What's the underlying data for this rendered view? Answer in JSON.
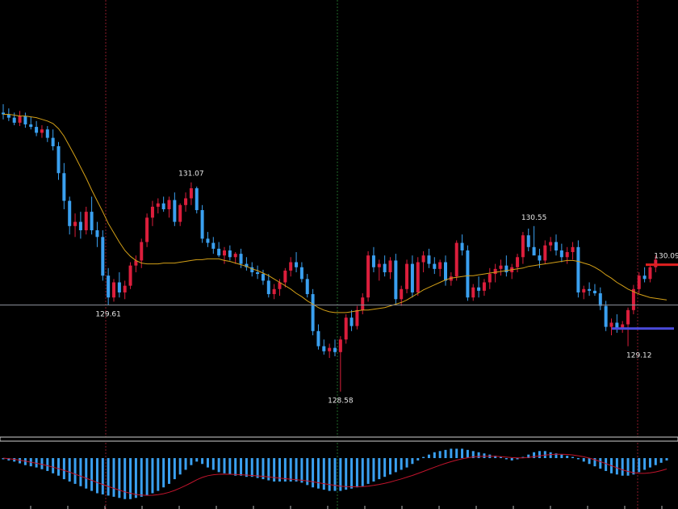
{
  "chart_data": {
    "type": "candlestick",
    "title": "",
    "xlabel": "",
    "ylabel": "",
    "ylim": [
      128.0,
      133.0
    ],
    "colors": {
      "background": "#000000",
      "up": "#dc1e3c",
      "down": "#3aa0f0",
      "moving_average": "#d4a017",
      "price_line": "#8a8f99",
      "resistance": "#e02020",
      "support": "#4a4ad8",
      "histogram": "#3aa0f0",
      "signal": "#c0142c"
    },
    "price_line": 129.61,
    "resistance_level": 130.09,
    "support_level": 129.33,
    "annotations": [
      {
        "text": "131.07",
        "index": 34,
        "price": 131.07,
        "pos": "above"
      },
      {
        "text": "129.61",
        "index": 19,
        "price": 129.61,
        "pos": "below"
      },
      {
        "text": "128.58",
        "index": 61,
        "price": 128.58,
        "pos": "below"
      },
      {
        "text": "130.55",
        "index": 96,
        "price": 130.55,
        "pos": "above"
      },
      {
        "text": "129.12",
        "index": 115,
        "price": 129.12,
        "pos": "below"
      },
      {
        "text": "130.09",
        "index": 120,
        "price": 130.09,
        "pos": "above"
      }
    ],
    "candles": [
      [
        131.9,
        132.0,
        131.82,
        131.88
      ],
      [
        131.88,
        131.95,
        131.8,
        131.84
      ],
      [
        131.84,
        131.9,
        131.75,
        131.78
      ],
      [
        131.78,
        131.92,
        131.74,
        131.86
      ],
      [
        131.86,
        131.9,
        131.72,
        131.76
      ],
      [
        131.76,
        131.85,
        131.7,
        131.73
      ],
      [
        131.73,
        131.8,
        131.62,
        131.66
      ],
      [
        131.66,
        131.75,
        131.6,
        131.7
      ],
      [
        131.7,
        131.74,
        131.55,
        131.6
      ],
      [
        131.6,
        131.7,
        131.45,
        131.5
      ],
      [
        131.5,
        131.55,
        131.1,
        131.18
      ],
      [
        131.18,
        131.3,
        130.75,
        130.85
      ],
      [
        130.85,
        130.9,
        130.45,
        130.55
      ],
      [
        130.55,
        130.7,
        130.42,
        130.6
      ],
      [
        130.6,
        130.72,
        130.4,
        130.5
      ],
      [
        130.5,
        130.78,
        130.45,
        130.72
      ],
      [
        130.72,
        130.9,
        130.45,
        130.5
      ],
      [
        130.5,
        130.6,
        130.3,
        130.42
      ],
      [
        130.42,
        130.5,
        129.9,
        129.96
      ],
      [
        129.96,
        130.05,
        129.61,
        129.7
      ],
      [
        129.7,
        129.92,
        129.65,
        129.88
      ],
      [
        129.88,
        130.0,
        129.7,
        129.76
      ],
      [
        129.76,
        129.9,
        129.68,
        129.84
      ],
      [
        129.84,
        130.12,
        129.8,
        130.08
      ],
      [
        130.08,
        130.2,
        130.0,
        130.14
      ],
      [
        130.14,
        130.4,
        130.05,
        130.36
      ],
      [
        130.36,
        130.7,
        130.3,
        130.65
      ],
      [
        130.65,
        130.85,
        130.55,
        130.78
      ],
      [
        130.78,
        130.88,
        130.7,
        130.82
      ],
      [
        130.82,
        130.9,
        130.72,
        130.75
      ],
      [
        130.75,
        130.9,
        130.65,
        130.86
      ],
      [
        130.86,
        130.95,
        130.55,
        130.6
      ],
      [
        130.6,
        130.82,
        130.55,
        130.8
      ],
      [
        130.8,
        130.95,
        130.72,
        130.88
      ],
      [
        130.88,
        131.07,
        130.8,
        131.0
      ],
      [
        131.0,
        131.02,
        130.7,
        130.74
      ],
      [
        130.74,
        130.8,
        130.35,
        130.4
      ],
      [
        130.4,
        130.48,
        130.3,
        130.35
      ],
      [
        130.35,
        130.42,
        130.22,
        130.28
      ],
      [
        130.28,
        130.36,
        130.18,
        130.2
      ],
      [
        130.2,
        130.3,
        130.1,
        130.26
      ],
      [
        130.26,
        130.32,
        130.14,
        130.18
      ],
      [
        130.18,
        130.24,
        130.1,
        130.22
      ],
      [
        130.22,
        130.28,
        130.05,
        130.1
      ],
      [
        130.1,
        130.18,
        130.02,
        130.06
      ],
      [
        130.06,
        130.12,
        129.95,
        130.0
      ],
      [
        130.0,
        130.08,
        129.92,
        129.98
      ],
      [
        129.98,
        130.03,
        129.85,
        129.9
      ],
      [
        129.9,
        129.98,
        129.7,
        129.74
      ],
      [
        129.74,
        129.86,
        129.68,
        129.8
      ],
      [
        129.8,
        129.92,
        129.72,
        129.88
      ],
      [
        129.88,
        130.05,
        129.82,
        130.02
      ],
      [
        130.02,
        130.18,
        129.95,
        130.12
      ],
      [
        130.12,
        130.24,
        130.0,
        130.06
      ],
      [
        130.06,
        130.12,
        129.88,
        129.92
      ],
      [
        129.92,
        129.98,
        129.7,
        129.74
      ],
      [
        129.74,
        129.8,
        129.25,
        129.3
      ],
      [
        129.3,
        129.38,
        129.08,
        129.12
      ],
      [
        129.12,
        129.2,
        129.02,
        129.06
      ],
      [
        129.06,
        129.15,
        128.98,
        129.1
      ],
      [
        129.1,
        129.2,
        129.0,
        129.05
      ],
      [
        129.05,
        129.24,
        128.58,
        129.2
      ],
      [
        129.2,
        129.5,
        129.15,
        129.46
      ],
      [
        129.46,
        129.55,
        129.3,
        129.36
      ],
      [
        129.36,
        129.6,
        129.32,
        129.55
      ],
      [
        129.55,
        129.75,
        129.5,
        129.7
      ],
      [
        129.7,
        130.25,
        129.65,
        130.2
      ],
      [
        130.2,
        130.3,
        130.0,
        130.06
      ],
      [
        130.06,
        130.15,
        129.9,
        130.1
      ],
      [
        130.1,
        130.2,
        129.95,
        130.0
      ],
      [
        130.0,
        130.18,
        129.92,
        130.14
      ],
      [
        130.14,
        130.22,
        129.62,
        129.68
      ],
      [
        129.68,
        129.84,
        129.6,
        129.8
      ],
      [
        129.8,
        130.15,
        129.75,
        130.1
      ],
      [
        130.1,
        130.2,
        129.7,
        129.76
      ],
      [
        129.76,
        130.18,
        129.72,
        130.12
      ],
      [
        130.12,
        130.25,
        130.0,
        130.2
      ],
      [
        130.2,
        130.28,
        130.05,
        130.1
      ],
      [
        130.1,
        130.18,
        129.98,
        130.04
      ],
      [
        130.04,
        130.15,
        129.95,
        130.12
      ],
      [
        130.12,
        130.2,
        129.84,
        129.9
      ],
      [
        129.9,
        130.0,
        129.84,
        129.95
      ],
      [
        129.95,
        130.38,
        129.9,
        130.35
      ],
      [
        130.35,
        130.45,
        130.2,
        130.26
      ],
      [
        130.26,
        130.32,
        129.66,
        129.7
      ],
      [
        129.7,
        129.86,
        129.66,
        129.82
      ],
      [
        129.82,
        129.95,
        129.7,
        129.78
      ],
      [
        129.78,
        129.92,
        129.72,
        129.88
      ],
      [
        129.88,
        130.05,
        129.8,
        129.98
      ],
      [
        129.98,
        130.1,
        129.88,
        130.04
      ],
      [
        130.04,
        130.15,
        129.96,
        130.08
      ],
      [
        130.08,
        130.2,
        129.95,
        130.0
      ],
      [
        130.0,
        130.1,
        129.92,
        130.06
      ],
      [
        130.06,
        130.22,
        130.0,
        130.18
      ],
      [
        130.18,
        130.48,
        130.1,
        130.44
      ],
      [
        130.44,
        130.52,
        130.25,
        130.3
      ],
      [
        130.3,
        130.55,
        130.22,
        130.2
      ],
      [
        130.2,
        130.28,
        130.05,
        130.14
      ],
      [
        130.14,
        130.38,
        130.1,
        130.32
      ],
      [
        130.32,
        130.42,
        130.25,
        130.36
      ],
      [
        130.36,
        130.45,
        130.2,
        130.26
      ],
      [
        130.26,
        130.34,
        130.12,
        130.18
      ],
      [
        130.18,
        130.3,
        130.1,
        130.24
      ],
      [
        130.24,
        130.36,
        130.15,
        130.3
      ],
      [
        130.3,
        130.38,
        129.7,
        129.76
      ],
      [
        129.76,
        129.84,
        129.68,
        129.8
      ],
      [
        129.8,
        129.88,
        129.72,
        129.78
      ],
      [
        129.78,
        129.86,
        129.72,
        129.75
      ],
      [
        129.75,
        129.82,
        129.55,
        129.6
      ],
      [
        129.6,
        129.66,
        129.3,
        129.35
      ],
      [
        129.35,
        129.45,
        129.25,
        129.4
      ],
      [
        129.4,
        129.5,
        129.28,
        129.32
      ],
      [
        129.32,
        129.42,
        129.28,
        129.38
      ],
      [
        129.38,
        129.58,
        129.12,
        129.55
      ],
      [
        129.55,
        129.85,
        129.5,
        129.8
      ],
      [
        129.8,
        130.0,
        129.75,
        129.96
      ],
      [
        129.96,
        130.06,
        129.88,
        129.92
      ],
      [
        129.92,
        130.09,
        129.88,
        130.06
      ],
      [
        130.06,
        130.2,
        130.0,
        130.15
      ]
    ],
    "ma": [
      131.88,
      131.88,
      131.87,
      131.86,
      131.86,
      131.85,
      131.84,
      131.82,
      131.8,
      131.77,
      131.71,
      131.62,
      131.5,
      131.38,
      131.25,
      131.12,
      130.98,
      130.85,
      130.72,
      130.58,
      130.47,
      130.36,
      130.26,
      130.19,
      130.14,
      130.11,
      130.1,
      130.1,
      130.1,
      130.11,
      130.11,
      130.11,
      130.12,
      130.13,
      130.14,
      130.15,
      130.15,
      130.16,
      130.16,
      130.16,
      130.14,
      130.13,
      130.11,
      130.09,
      130.07,
      130.04,
      130.02,
      129.99,
      129.96,
      129.92,
      129.88,
      129.84,
      129.8,
      129.75,
      129.71,
      129.66,
      129.62,
      129.58,
      129.55,
      129.53,
      129.52,
      129.52,
      129.52,
      129.53,
      129.54,
      129.55,
      129.55,
      129.56,
      129.57,
      129.58,
      129.6,
      129.62,
      129.64,
      129.67,
      129.71,
      129.75,
      129.79,
      129.82,
      129.85,
      129.88,
      129.91,
      129.93,
      129.94,
      129.95,
      129.96,
      129.96,
      129.97,
      129.98,
      129.99,
      130.0,
      130.01,
      130.02,
      130.03,
      130.04,
      130.05,
      130.07,
      130.08,
      130.09,
      130.1,
      130.11,
      130.12,
      130.13,
      130.14,
      130.14,
      130.13,
      130.11,
      130.09,
      130.06,
      130.02,
      129.97,
      129.93,
      129.88,
      129.84,
      129.8,
      129.77,
      129.74,
      129.72,
      129.7,
      129.69,
      129.68,
      129.67
    ],
    "histogram": [
      -0.1,
      -0.2,
      -0.3,
      -0.45,
      -0.6,
      -0.7,
      -0.8,
      -0.95,
      -1.1,
      -1.3,
      -1.5,
      -1.8,
      -2.0,
      -2.2,
      -2.4,
      -2.6,
      -2.8,
      -3.0,
      -3.1,
      -3.2,
      -3.3,
      -3.4,
      -3.5,
      -3.5,
      -3.4,
      -3.3,
      -3.2,
      -3.0,
      -2.8,
      -2.5,
      -2.2,
      -1.8,
      -1.4,
      -1.0,
      -0.6,
      -0.3,
      -0.5,
      -0.8,
      -1.0,
      -1.2,
      -1.3,
      -1.4,
      -1.5,
      -1.5,
      -1.6,
      -1.6,
      -1.7,
      -1.8,
      -1.9,
      -2.0,
      -2.0,
      -2.0,
      -2.0,
      -2.0,
      -2.1,
      -2.3,
      -2.5,
      -2.6,
      -2.7,
      -2.8,
      -2.8,
      -2.8,
      -2.7,
      -2.6,
      -2.5,
      -2.4,
      -2.2,
      -2.0,
      -1.8,
      -1.6,
      -1.4,
      -1.2,
      -1.0,
      -0.8,
      -0.5,
      -0.2,
      0.1,
      0.3,
      0.5,
      0.6,
      0.7,
      0.8,
      0.8,
      0.8,
      0.7,
      0.6,
      0.5,
      0.4,
      0.3,
      0.2,
      0.1,
      -0.1,
      -0.2,
      -0.1,
      0.1,
      0.3,
      0.5,
      0.6,
      0.6,
      0.5,
      0.4,
      0.3,
      0.2,
      0.1,
      -0.1,
      -0.3,
      -0.5,
      -0.7,
      -0.9,
      -1.1,
      -1.3,
      -1.4,
      -1.5,
      -1.5,
      -1.4,
      -1.2,
      -1.0,
      -0.8,
      -0.6,
      -0.4,
      -0.2
    ],
    "signal": [
      0.0,
      -0.05,
      -0.1,
      -0.18,
      -0.26,
      -0.35,
      -0.44,
      -0.54,
      -0.65,
      -0.77,
      -0.9,
      -1.05,
      -1.2,
      -1.37,
      -1.54,
      -1.72,
      -1.9,
      -2.08,
      -2.25,
      -2.42,
      -2.58,
      -2.73,
      -2.88,
      -3.0,
      -3.1,
      -3.15,
      -3.18,
      -3.17,
      -3.12,
      -3.04,
      -2.92,
      -2.76,
      -2.56,
      -2.34,
      -2.1,
      -1.85,
      -1.65,
      -1.5,
      -1.42,
      -1.38,
      -1.37,
      -1.38,
      -1.4,
      -1.42,
      -1.45,
      -1.48,
      -1.52,
      -1.56,
      -1.61,
      -1.66,
      -1.71,
      -1.76,
      -1.8,
      -1.84,
      -1.89,
      -1.95,
      -2.02,
      -2.1,
      -2.18,
      -2.26,
      -2.33,
      -2.39,
      -2.43,
      -2.45,
      -2.45,
      -2.43,
      -2.39,
      -2.33,
      -2.25,
      -2.15,
      -2.04,
      -1.91,
      -1.78,
      -1.63,
      -1.48,
      -1.31,
      -1.14,
      -0.96,
      -0.78,
      -0.61,
      -0.45,
      -0.3,
      -0.17,
      -0.06,
      0.03,
      0.1,
      0.14,
      0.16,
      0.16,
      0.15,
      0.12,
      0.08,
      0.04,
      0.02,
      0.02,
      0.06,
      0.12,
      0.19,
      0.26,
      0.3,
      0.33,
      0.33,
      0.31,
      0.27,
      0.2,
      0.11,
      0.0,
      -0.14,
      -0.3,
      -0.47,
      -0.65,
      -0.83,
      -1.0,
      -1.14,
      -1.24,
      -1.3,
      -1.3,
      -1.26,
      -1.18,
      -1.07,
      -0.93
    ]
  }
}
